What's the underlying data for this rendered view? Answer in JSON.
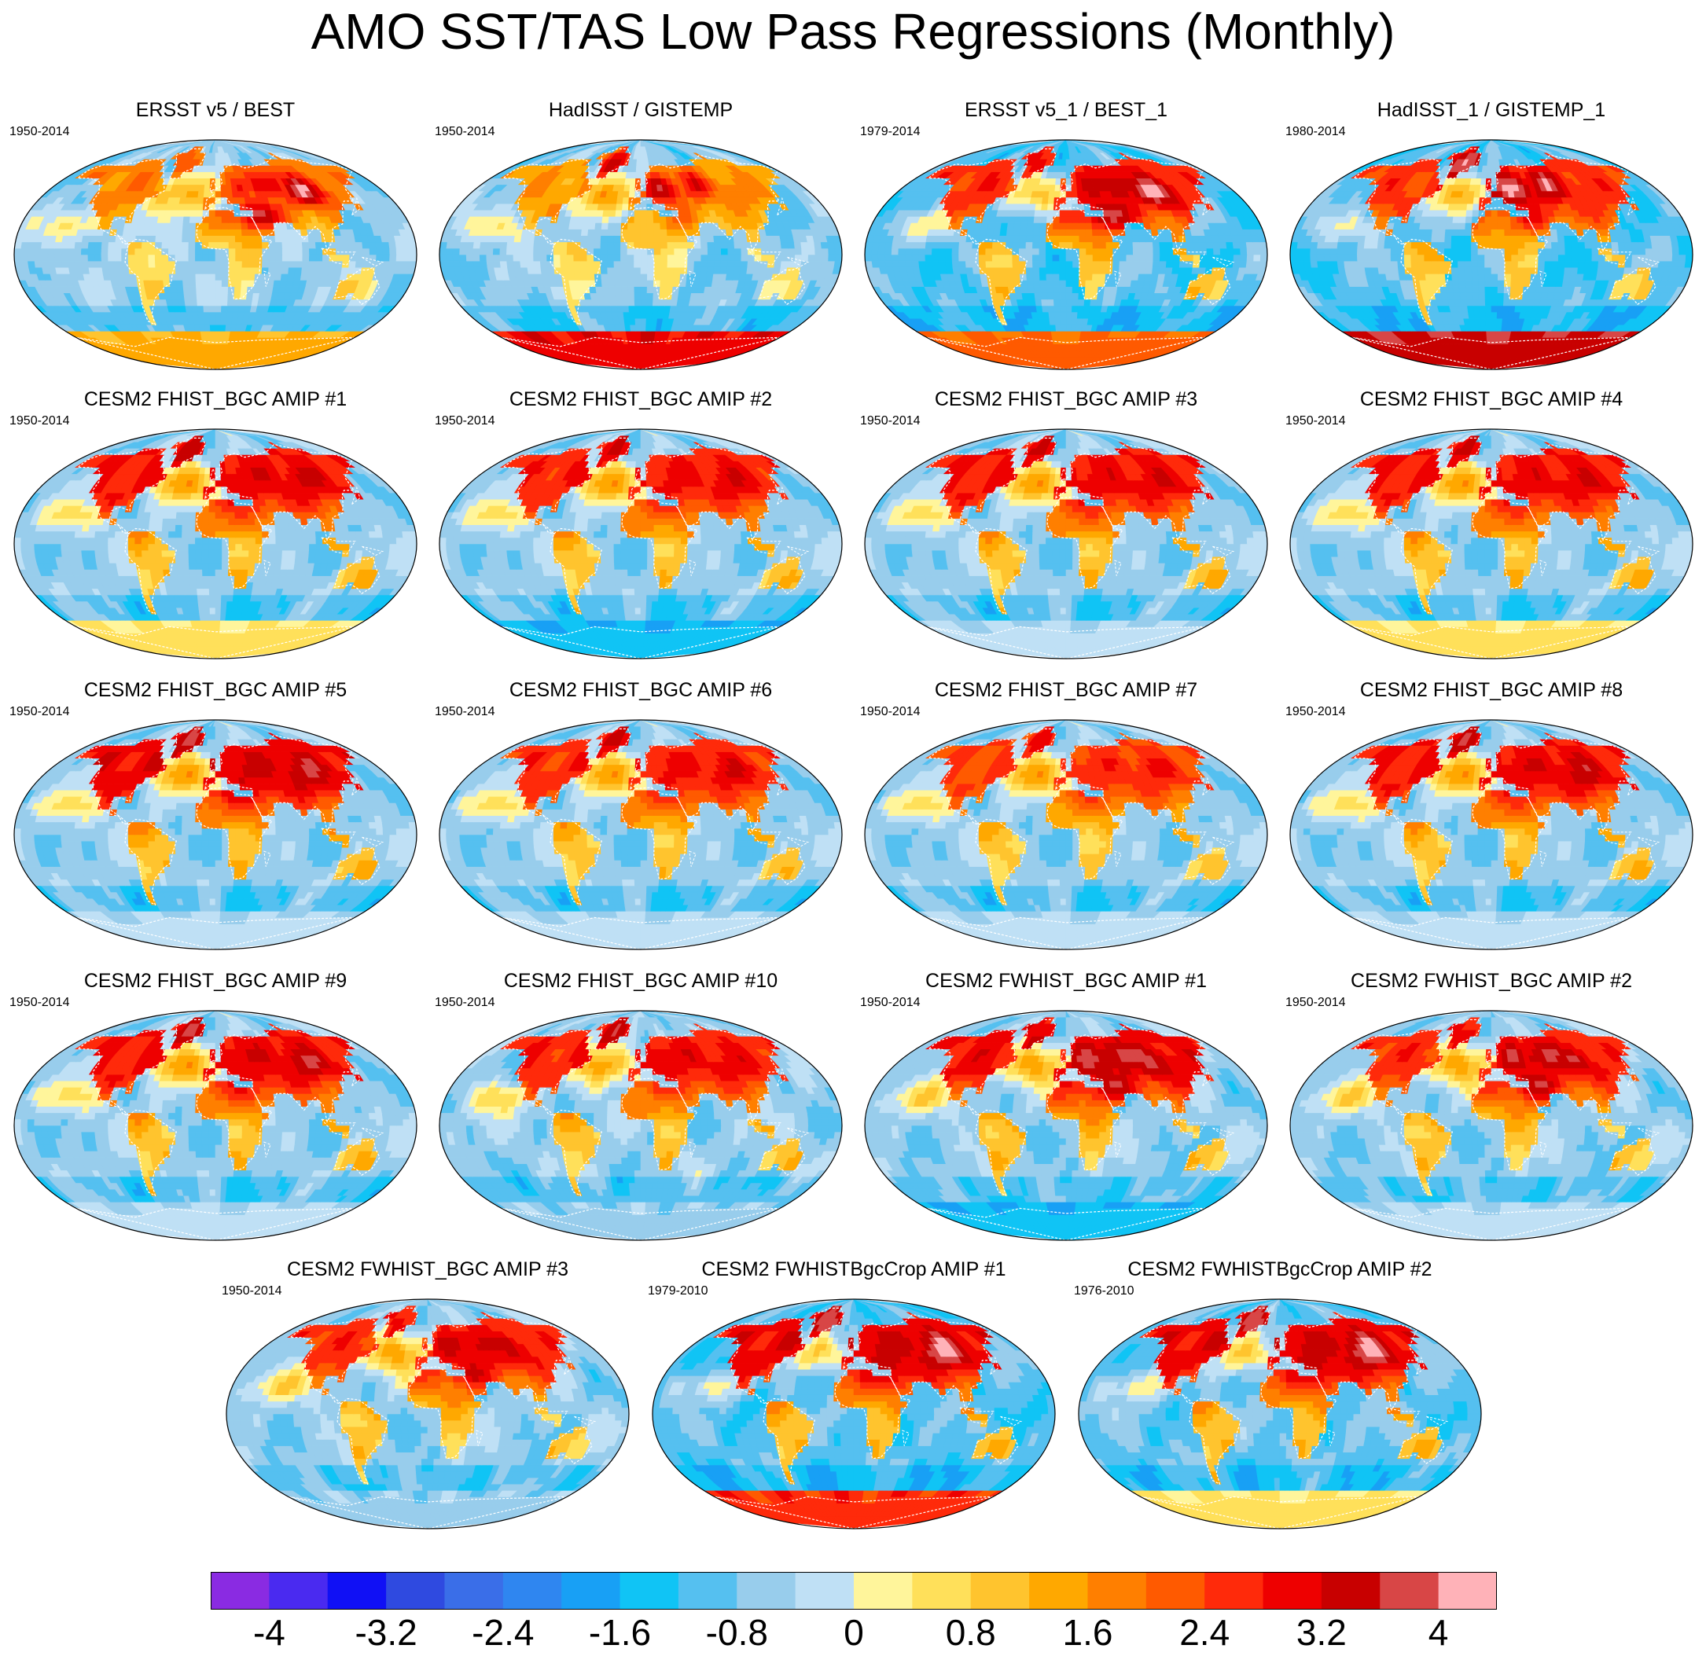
{
  "title": "AMO SST/TAS Low Pass Regressions (Monthly)",
  "chart_data": {
    "type": "heatmap",
    "projection": "global map (Robinson-like)",
    "title": "AMO SST/TAS Low Pass Regressions (Monthly)",
    "colorbar": {
      "levels": [
        -4.4,
        -4,
        -3.6,
        -3.2,
        -2.8,
        -2.4,
        -2,
        -1.6,
        -1.2,
        -0.8,
        -0.4,
        0,
        0.4,
        0.8,
        1.2,
        1.6,
        2,
        2.4,
        2.8,
        3.2,
        3.6,
        4,
        4.4
      ],
      "colors": [
        "#8a2be2",
        "#4a2af0",
        "#1010f5",
        "#2f4ae0",
        "#3a6ee8",
        "#2f86f0",
        "#18a0f5",
        "#10c4f5",
        "#55c0f0",
        "#98cdec",
        "#bfe0f5",
        "#fff59b",
        "#ffe05a",
        "#ffc42e",
        "#ffa800",
        "#ff7f00",
        "#ff5a00",
        "#ff2a0a",
        "#ee0000",
        "#c80000",
        "#d84646",
        "#ffb2b8"
      ],
      "tick_labels": [
        "-4",
        "-3.2",
        "-2.4",
        "-1.6",
        "-0.8",
        "0",
        "0.8",
        "1.6",
        "2.4",
        "3.2",
        "4"
      ],
      "tick_values": [
        -4,
        -3.2,
        -2.4,
        -1.6,
        -0.8,
        0,
        0.8,
        1.6,
        2.4,
        3.2,
        4
      ]
    },
    "panels": [
      {
        "title": "ERSST v5 / BEST",
        "period": "1950-2014",
        "row": 0,
        "col": 0,
        "nh_land": 1.8,
        "nh_max": 4.2,
        "ocean": -0.6,
        "antarctic": 1.2
      },
      {
        "title": "HadISST / GISTEMP",
        "period": "1950-2014",
        "row": 0,
        "col": 1,
        "nh_land": 1.5,
        "nh_max": 3.8,
        "ocean": -0.7,
        "antarctic": 3.0
      },
      {
        "title": "ERSST v5_1 / BEST_1",
        "period": "1979-2014",
        "row": 0,
        "col": 2,
        "nh_land": 2.6,
        "nh_max": 4.3,
        "ocean": -1.0,
        "antarctic": 2.0
      },
      {
        "title": "HadISST_1 / GISTEMP_1",
        "period": "1980-2014",
        "row": 0,
        "col": 3,
        "nh_land": 2.5,
        "nh_max": 4.3,
        "ocean": -1.0,
        "antarctic": 3.5
      },
      {
        "title": "CESM2 FHIST_BGC AMIP #1",
        "period": "1950-2014",
        "row": 1,
        "col": 0,
        "nh_land": 2.8,
        "nh_max": 3.6,
        "ocean": -0.6,
        "antarctic": 0.4
      },
      {
        "title": "CESM2 FHIST_BGC AMIP #2",
        "period": "1950-2014",
        "row": 1,
        "col": 1,
        "nh_land": 2.7,
        "nh_max": 3.4,
        "ocean": -0.6,
        "antarctic": -1.6
      },
      {
        "title": "CESM2 FHIST_BGC AMIP #3",
        "period": "1950-2014",
        "row": 1,
        "col": 2,
        "nh_land": 2.8,
        "nh_max": 3.4,
        "ocean": -0.6,
        "antarctic": -0.4
      },
      {
        "title": "CESM2 FHIST_BGC AMIP #4",
        "period": "1950-2014",
        "row": 1,
        "col": 3,
        "nh_land": 2.8,
        "nh_max": 3.4,
        "ocean": -0.6,
        "antarctic": 0.4
      },
      {
        "title": "CESM2 FHIST_BGC AMIP #5",
        "period": "1950-2014",
        "row": 2,
        "col": 0,
        "nh_land": 3.0,
        "nh_max": 3.9,
        "ocean": -0.6,
        "antarctic": -0.4
      },
      {
        "title": "CESM2 FHIST_BGC AMIP #6",
        "period": "1950-2014",
        "row": 2,
        "col": 1,
        "nh_land": 2.6,
        "nh_max": 3.6,
        "ocean": -0.6,
        "antarctic": -0.4
      },
      {
        "title": "CESM2 FHIST_BGC AMIP #7",
        "period": "1950-2014",
        "row": 2,
        "col": 2,
        "nh_land": 2.4,
        "nh_max": 3.2,
        "ocean": -0.6,
        "antarctic": -0.4
      },
      {
        "title": "CESM2 FHIST_BGC AMIP #8",
        "period": "1950-2014",
        "row": 2,
        "col": 3,
        "nh_land": 2.8,
        "nh_max": 3.8,
        "ocean": -0.6,
        "antarctic": -0.4
      },
      {
        "title": "CESM2 FHIST_BGC AMIP #9",
        "period": "1950-2014",
        "row": 3,
        "col": 0,
        "nh_land": 2.8,
        "nh_max": 4.0,
        "ocean": -0.6,
        "antarctic": -0.4
      },
      {
        "title": "CESM2 FHIST_BGC AMIP #10",
        "period": "1950-2014",
        "row": 3,
        "col": 1,
        "nh_land": 2.7,
        "nh_max": 3.6,
        "ocean": -0.6,
        "antarctic": -0.6
      },
      {
        "title": "CESM2 FWHIST_BGC AMIP #1",
        "period": "1950-2014",
        "row": 3,
        "col": 2,
        "nh_land": 2.9,
        "nh_max": 4.0,
        "ocean": -0.6,
        "antarctic": -1.6
      },
      {
        "title": "CESM2 FWHIST_BGC AMIP #2",
        "period": "1950-2014",
        "row": 3,
        "col": 3,
        "nh_land": 2.6,
        "nh_max": 4.0,
        "ocean": -0.6,
        "antarctic": -0.4
      },
      {
        "title": "CESM2 FWHIST_BGC AMIP #3",
        "period": "1950-2014",
        "row": 4,
        "col": 0,
        "nh_land": 2.6,
        "nh_max": 3.6,
        "ocean": -0.6,
        "antarctic": -0.6
      },
      {
        "title": "CESM2 FWHISTBgcCrop AMIP #1",
        "period": "1979-2010",
        "row": 4,
        "col": 1,
        "nh_land": 3.0,
        "nh_max": 4.4,
        "ocean": -1.0,
        "antarctic": 2.6
      },
      {
        "title": "CESM2 FWHISTBgcCrop AMIP #2",
        "period": "1976-2010",
        "row": 4,
        "col": 2,
        "nh_land": 3.0,
        "nh_max": 4.4,
        "ocean": -0.9,
        "antarctic": 0.4
      }
    ]
  }
}
